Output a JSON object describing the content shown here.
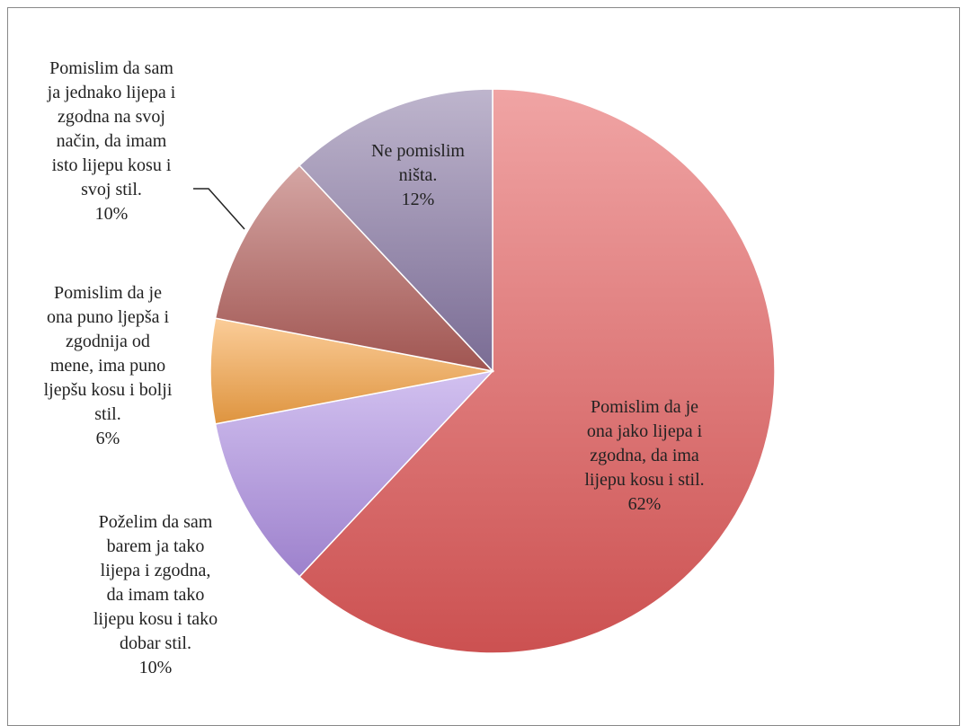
{
  "chart_data": {
    "type": "pie",
    "categories": [
      "Pomislim da je\nona jako lijepa i\nzgodna, da ima\nlijepu kosu i stil.",
      "Poželim da sam\nbarem ja tako\nlijepa i zgodna,\nda imam tako\nlijepu kosu i tako\ndobar stil.",
      "Pomislim da je\nona puno ljepša i\nzgodnija od\nmene, ima puno\nljepšu kosu i bolji\nstil.",
      "Pomislim da sam\nja jednako lijepa i\nzgodna na svoj\nnačin, da imam\nisto lijepu kosu i\nsvoj stil.",
      "Ne pomislim\nništa."
    ],
    "values": [
      62,
      10,
      6,
      10,
      12
    ],
    "value_labels": [
      "62%",
      "10%",
      "6%",
      "10%",
      "12%"
    ],
    "colors": [
      "#e35a5a",
      "#ae8fe3",
      "#f7a446",
      "#b25e5a",
      "#8878a4"
    ]
  }
}
